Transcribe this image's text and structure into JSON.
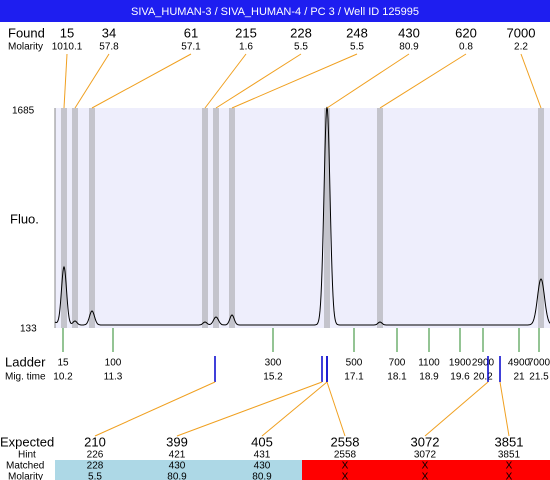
{
  "header": {
    "title": "SIVA_HUMAN-3 / SIVA_HUMAN-4 / PC 3 / Well ID 125995"
  },
  "found": {
    "label": "Found",
    "molarity_label": "Molarity",
    "items": [
      {
        "size": 15,
        "molarity": 1010.1
      },
      {
        "size": 34,
        "molarity": 57.8
      },
      {
        "size": 61,
        "molarity": 57.1
      },
      {
        "size": 215,
        "molarity": 1.6
      },
      {
        "size": 228,
        "molarity": 5.5
      },
      {
        "size": 248,
        "molarity": 5.5
      },
      {
        "size": 430,
        "molarity": 80.9
      },
      {
        "size": 620,
        "molarity": 0.8
      },
      {
        "size": 7000,
        "molarity": 2.2
      }
    ]
  },
  "plot": {
    "y_label": "Fluo.",
    "y_max": 1685,
    "y_min": 133
  },
  "ladder": {
    "label": "Ladder",
    "time_label": "Mig. time",
    "items": [
      {
        "size": 15,
        "time": 10.2
      },
      {
        "size": 100,
        "time": 11.3
      },
      {
        "size": 300,
        "time": 15.2
      },
      {
        "size": 500,
        "time": 17.1
      },
      {
        "size": 700,
        "time": 18.1
      },
      {
        "size": 1100,
        "time": 18.9
      },
      {
        "size": 1900,
        "time": 19.6
      },
      {
        "size": 2900,
        "time": 20.2
      },
      {
        "size": 4900,
        "time": 21
      },
      {
        "size": 7000,
        "time": 21.5
      }
    ]
  },
  "expected": {
    "label": "Expected",
    "hint_label": "Hint",
    "matched_label": "Matched",
    "molarity_label": "Molarity",
    "items": [
      {
        "expected": 210,
        "hint": 226,
        "matched": 228,
        "molarity": 5.5
      },
      {
        "expected": 399,
        "hint": 421,
        "matched": 430,
        "molarity": 80.9
      },
      {
        "expected": 405,
        "hint": 431,
        "matched": 430,
        "molarity": 80.9
      },
      {
        "expected": 2558,
        "hint": 2558,
        "matched": "X",
        "molarity": "X"
      },
      {
        "expected": 3072,
        "hint": 3072,
        "matched": "X",
        "molarity": "X"
      },
      {
        "expected": 3851,
        "hint": 3851,
        "matched": "X",
        "molarity": "X"
      }
    ]
  }
}
